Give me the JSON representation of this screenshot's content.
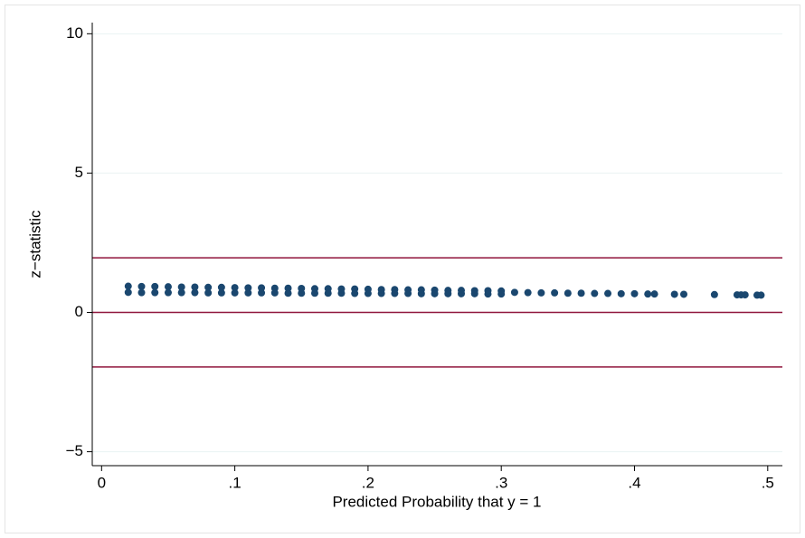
{
  "chart_data": {
    "type": "scatter",
    "x_label": "Predicted Probability that y = 1",
    "y_label": "z−statistic",
    "xlim": [
      -0.007,
      0.511
    ],
    "ylim": [
      -5.5,
      10.4
    ],
    "xticks": [
      0,
      {
        "value": 0.1,
        "label": ".1"
      },
      {
        "value": 0.2,
        "label": ".2"
      },
      {
        "value": 0.3,
        "label": ".3"
      },
      {
        "value": 0.4,
        "label": ".4"
      },
      {
        "value": 0.5,
        "label": ".5"
      }
    ],
    "yticks": [
      {
        "value": -5,
        "label": "−5"
      },
      0,
      5,
      10
    ],
    "grid": true,
    "hlines": [
      -1.96,
      0,
      1.96
    ],
    "hline_color": "#90153c",
    "series": [
      {
        "color": "#1a476f",
        "x": [
          0.02,
          0.03,
          0.04,
          0.05,
          0.06,
          0.07,
          0.08,
          0.09,
          0.1,
          0.11,
          0.12,
          0.13,
          0.14,
          0.15,
          0.16,
          0.17,
          0.18,
          0.19,
          0.2,
          0.21,
          0.22,
          0.23,
          0.24,
          0.25,
          0.26,
          0.27,
          0.28,
          0.29,
          0.3,
          0.02,
          0.03,
          0.04,
          0.05,
          0.06,
          0.07,
          0.08,
          0.09,
          0.1,
          0.11,
          0.12,
          0.13,
          0.14,
          0.15,
          0.16,
          0.17,
          0.18,
          0.19,
          0.2,
          0.21,
          0.22,
          0.23,
          0.24,
          0.25,
          0.26,
          0.27,
          0.28,
          0.29,
          0.3,
          0.31,
          0.32,
          0.33,
          0.34,
          0.35,
          0.36,
          0.37,
          0.38,
          0.39,
          0.4,
          0.41,
          0.415,
          0.43,
          0.437,
          0.46,
          0.477,
          0.48,
          0.483,
          0.492,
          0.495
        ],
        "values": [
          0.94,
          0.93,
          0.93,
          0.92,
          0.91,
          0.91,
          0.9,
          0.9,
          0.89,
          0.88,
          0.88,
          0.87,
          0.87,
          0.86,
          0.85,
          0.85,
          0.84,
          0.84,
          0.83,
          0.82,
          0.82,
          0.81,
          0.81,
          0.8,
          0.79,
          0.79,
          0.78,
          0.78,
          0.77,
          0.72,
          0.71,
          0.71,
          0.71,
          0.71,
          0.71,
          0.7,
          0.7,
          0.7,
          0.7,
          0.7,
          0.7,
          0.69,
          0.69,
          0.69,
          0.69,
          0.69,
          0.68,
          0.68,
          0.68,
          0.68,
          0.68,
          0.67,
          0.67,
          0.67,
          0.67,
          0.67,
          0.66,
          0.66,
          0.72,
          0.71,
          0.7,
          0.7,
          0.69,
          0.69,
          0.68,
          0.68,
          0.67,
          0.67,
          0.66,
          0.66,
          0.65,
          0.65,
          0.64,
          0.63,
          0.63,
          0.63,
          0.62,
          0.62
        ]
      }
    ]
  }
}
